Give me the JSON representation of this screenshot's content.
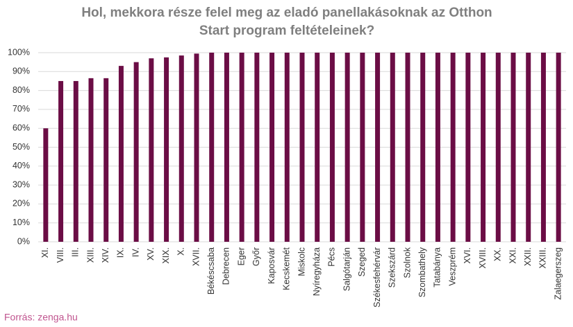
{
  "chart_data": {
    "type": "bar",
    "title": [
      "Hol, mekkora része felel meg az eladó panellakásoknak az Otthon",
      "Start program feltételeinek?"
    ],
    "source": "Forrás: zenga.hu",
    "categories": [
      "XI.",
      "VIII.",
      "III.",
      "XIII.",
      "XIV.",
      "IX.",
      "IV.",
      "XV.",
      "XIX.",
      "X.",
      "XVII.",
      "Békéscsaba",
      "Debrecen",
      "Eger",
      "Győr",
      "Kaposvár",
      "Kecskemét",
      "Miskolc",
      "Nyíregyháza",
      "Pécs",
      "Salgótarján",
      "Szeged",
      "Székesfehérvár",
      "Szekszárd",
      "Szolnok",
      "Szombathely",
      "Tatabánya",
      "Veszprém",
      "XVI.",
      "XVIII.",
      "XX.",
      "XXI.",
      "XXII.",
      "XXIII.",
      "Zalaegerszeg"
    ],
    "values": [
      60,
      85,
      85,
      86.5,
      86.5,
      93,
      95,
      97,
      97.5,
      98.5,
      99.5,
      100,
      100,
      100,
      100,
      100,
      100,
      100,
      100,
      100,
      100,
      100,
      100,
      100,
      100,
      100,
      100,
      100,
      100,
      100,
      100,
      100,
      100,
      100,
      100
    ],
    "color": "#6b0d45",
    "ylim": [
      0,
      100
    ],
    "yticks": [
      {
        "value": 0,
        "label": "0%"
      },
      {
        "value": 10,
        "label": "10%"
      },
      {
        "value": 20,
        "label": "20%"
      },
      {
        "value": 30,
        "label": "30%"
      },
      {
        "value": 40,
        "label": "40%"
      },
      {
        "value": 50,
        "label": "50%"
      },
      {
        "value": 60,
        "label": "60%"
      },
      {
        "value": 70,
        "label": "70%"
      },
      {
        "value": 80,
        "label": "80%"
      },
      {
        "value": 90,
        "label": "90%"
      },
      {
        "value": 100,
        "label": "100%"
      }
    ],
    "grid": true
  }
}
